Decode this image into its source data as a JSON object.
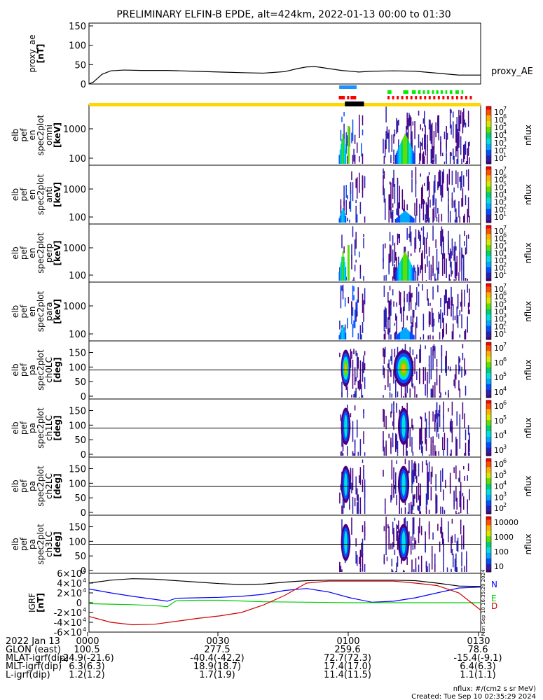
{
  "title": "PRELIMINARY ELFIN-B EPDE, alt=424km, 2022-01-13 00:00 to 01:30",
  "colors": {
    "trace": "#000000",
    "orbit_bar": "#ffd700",
    "blue_bar": "#1e90ff",
    "red_bar": "#ff0000",
    "green_bar": "#00ee00",
    "black_bar": "#000000",
    "geo_n": "#0000ff",
    "geo_e": "#00cc00",
    "geo_d": "#cc0000",
    "geo_total": "#000000"
  },
  "chart_data": [
    {
      "type": "line",
      "ylabel_lines": [
        "proxy_ae",
        "[nT]"
      ],
      "yticks": [
        0,
        50,
        100,
        150
      ],
      "ylim": [
        0,
        150
      ],
      "xlim": [
        0,
        90
      ],
      "series": [
        {
          "name": "proxy_AE",
          "x": [
            0,
            1,
            2,
            3,
            5,
            8,
            12,
            18,
            24,
            30,
            36,
            40,
            45,
            48,
            50,
            52,
            55,
            58,
            62,
            65,
            70,
            75,
            80,
            85,
            88,
            90
          ],
          "y": [
            0,
            5,
            15,
            25,
            34,
            36,
            35,
            35,
            33,
            31,
            29,
            28,
            32,
            40,
            44,
            45,
            40,
            35,
            31,
            33,
            34,
            33,
            28,
            23,
            23,
            23
          ]
        }
      ]
    },
    {
      "type": "heatmap",
      "ylabel_lines": [
        "elb",
        "pef",
        "en",
        "spec2plot",
        "omni",
        "[keV]"
      ],
      "yticks": [
        "100",
        "1000"
      ],
      "colorbar": {
        "label": "nflux",
        "ticks": [
          "10",
          "10",
          "10",
          "10",
          "10",
          "10",
          "10"
        ],
        "exponents": [
          "1",
          "2",
          "3",
          "4",
          "5",
          "6",
          "7"
        ]
      }
    },
    {
      "type": "heatmap",
      "ylabel_lines": [
        "elb",
        "pef",
        "en",
        "spec2plot",
        "anti",
        "[keV]"
      ],
      "yticks": [
        "100",
        "1000"
      ],
      "colorbar": {
        "label": "nflux",
        "ticks": [
          "10",
          "10",
          "10",
          "10",
          "10",
          "10",
          "10"
        ],
        "exponents": [
          "1",
          "2",
          "3",
          "4",
          "5",
          "6",
          "7"
        ]
      }
    },
    {
      "type": "heatmap",
      "ylabel_lines": [
        "elb",
        "pef",
        "en",
        "spec2plot",
        "perp",
        "[keV]"
      ],
      "yticks": [
        "100",
        "1000"
      ],
      "colorbar": {
        "label": "nflux",
        "ticks": [
          "10",
          "10",
          "10",
          "10",
          "10",
          "10",
          "10"
        ],
        "exponents": [
          "1",
          "2",
          "3",
          "4",
          "5",
          "6",
          "7"
        ]
      }
    },
    {
      "type": "heatmap",
      "ylabel_lines": [
        "elb",
        "pef",
        "en",
        "spec2plot",
        "para",
        "[keV]"
      ],
      "yticks": [
        "100",
        "1000"
      ],
      "colorbar": {
        "label": "nflux",
        "ticks": [
          "10",
          "10",
          "10",
          "10",
          "10",
          "10",
          "10"
        ],
        "exponents": [
          "1",
          "2",
          "3",
          "4",
          "5",
          "6",
          "7"
        ]
      }
    },
    {
      "type": "heatmap",
      "ylabel_lines": [
        "elb",
        "pef",
        "pa",
        "spec2plot",
        "ch0LC",
        "[deg]"
      ],
      "yticks": [
        "0",
        "50",
        "100",
        "150"
      ],
      "colorbar": {
        "label": "nflux",
        "ticks": [
          "10",
          "10",
          "10",
          "10"
        ],
        "exponents": [
          "4",
          "5",
          "6",
          "7"
        ]
      }
    },
    {
      "type": "heatmap",
      "ylabel_lines": [
        "elb",
        "pef",
        "pa",
        "spec2plot",
        "ch1LC",
        "[deg]"
      ],
      "yticks": [
        "0",
        "50",
        "100",
        "150"
      ],
      "colorbar": {
        "label": "nflux",
        "ticks": [
          "10",
          "10",
          "10",
          "10"
        ],
        "exponents": [
          "3",
          "4",
          "5",
          "6"
        ]
      }
    },
    {
      "type": "heatmap",
      "ylabel_lines": [
        "elb",
        "pef",
        "pa",
        "spec2plot",
        "ch2LC",
        "[deg]"
      ],
      "yticks": [
        "0",
        "50",
        "100",
        "150"
      ],
      "colorbar": {
        "label": "nflux",
        "ticks": [
          "10",
          "10",
          "10",
          "10",
          "10"
        ],
        "exponents": [
          "2",
          "3",
          "4",
          "5",
          "6"
        ]
      }
    },
    {
      "type": "heatmap",
      "ylabel_lines": [
        "elb",
        "pef",
        "pa",
        "spec2plot",
        "ch3LC",
        "[deg]"
      ],
      "yticks": [
        "0",
        "50",
        "100",
        "150"
      ],
      "colorbar": {
        "label": "nflux",
        "ticks": [
          "10",
          "100",
          "1000",
          "10000"
        ]
      }
    },
    {
      "type": "line",
      "ylabel_lines": [
        "IGRF",
        "[nT]"
      ],
      "yticks": [
        "-6×10",
        "-4×10",
        "-2×10",
        "0",
        "2×10",
        "4×10",
        "6×10"
      ],
      "ytick_exponent": "4",
      "ylim": [
        -60000,
        60000
      ],
      "xlim": [
        0,
        90
      ],
      "series": [
        {
          "name": "N",
          "x": [
            0,
            5,
            10,
            15,
            18,
            20,
            25,
            30,
            35,
            40,
            45,
            50,
            55,
            60,
            65,
            70,
            75,
            80,
            85,
            90
          ],
          "y": [
            28000,
            20000,
            13000,
            7000,
            3000,
            9000,
            10000,
            11000,
            13000,
            17000,
            25000,
            29000,
            22000,
            10000,
            1000,
            3000,
            10000,
            20000,
            30000,
            32000
          ]
        },
        {
          "name": "E",
          "x": [
            0,
            5,
            10,
            15,
            18,
            20,
            25,
            30,
            40,
            50,
            60,
            70,
            80,
            90
          ],
          "y": [
            -2000,
            -3000,
            -4000,
            -6000,
            -8000,
            4000,
            5000,
            5000,
            2000,
            1000,
            0,
            0,
            0,
            0
          ]
        },
        {
          "name": "D",
          "x": [
            0,
            5,
            10,
            15,
            20,
            25,
            30,
            35,
            40,
            45,
            50,
            55,
            60,
            65,
            70,
            75,
            80,
            85,
            90
          ],
          "y": [
            -28000,
            -40000,
            -45000,
            -44000,
            -38000,
            -32000,
            -27000,
            -20000,
            -5000,
            15000,
            40000,
            44000,
            44000,
            44000,
            44000,
            40000,
            35000,
            20000,
            -15000
          ]
        },
        {
          "name": "",
          "x": [
            0,
            5,
            10,
            15,
            20,
            25,
            30,
            35,
            40,
            45,
            50,
            55,
            60,
            65,
            70,
            75,
            80,
            85,
            90
          ],
          "y": [
            40000,
            46000,
            49000,
            48000,
            45000,
            42000,
            39000,
            37000,
            38000,
            42000,
            45000,
            46000,
            46000,
            46000,
            46000,
            45000,
            40000,
            34000,
            33000
          ]
        }
      ]
    }
  ],
  "geo_labels": [
    "N",
    "E",
    "D"
  ],
  "side_label": "Mon Sep 10 16:35:29 2024",
  "footer": {
    "rows": [
      {
        "label": "2022 Jan 13",
        "values": [
          "0000",
          "0030",
          "0100",
          "0130"
        ]
      },
      {
        "label": "GLON (east)",
        "values": [
          "100.5",
          "277.5",
          "259.6",
          "78.6"
        ]
      },
      {
        "label": "MLAT-igrf(dip)",
        "values": [
          "-24.9(-21.6)",
          "-40.4(-42.2)",
          "72.7(72.3)",
          "-15.4(-9.1)"
        ]
      },
      {
        "label": "MLT-igrf(dip)",
        "values": [
          "6.3(6.3)",
          "18.9(18.7)",
          "17.4(17.0)",
          "6.4(6.3)"
        ]
      },
      {
        "label": "L-igrf(dip)",
        "values": [
          "1.2(1.2)",
          "1.7(1.9)",
          "11.4(11.5)",
          "1.1(1.1)"
        ]
      }
    ],
    "units_note": "nflux: #/(cm2 s sr MeV)",
    "created": "Created: Tue Sep 10 02:35:29 2024"
  }
}
